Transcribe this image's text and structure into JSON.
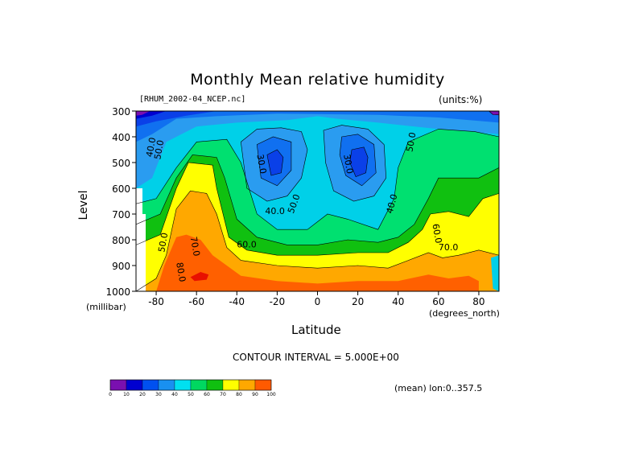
{
  "chart_data": {
    "type": "contour",
    "title": "Monthly Mean relative humidity",
    "source": "[RHUM_2002-04_NCEP.nc]",
    "units": "(units:%)",
    "xlabel": "Latitude",
    "x_unit": "(degrees_north)",
    "ylabel": "Level",
    "y_unit": "(millibar)",
    "xlim": [
      -90,
      90
    ],
    "ylim": [
      1000,
      300
    ],
    "x_ticks": [
      "-80",
      "-60",
      "-40",
      "-20",
      "0",
      "20",
      "40",
      "60",
      "80"
    ],
    "y_ticks": [
      "300",
      "400",
      "500",
      "600",
      "700",
      "800",
      "900",
      "1000"
    ],
    "contour_interval_text": "CONTOUR INTERVAL = 5.000E+00",
    "mean_text": "(mean) lon:0..357.5",
    "contour_labels": [
      "40.0",
      "50.0",
      "30.0",
      "30.0",
      "40.0",
      "50.0",
      "40.0",
      "50.0",
      "60.0",
      "70.0",
      "60.0",
      "70.0",
      "50.0",
      "80.0"
    ],
    "colorbar": {
      "levels": [
        "0",
        "10",
        "20",
        "30",
        "40",
        "50",
        "60",
        "70",
        "80",
        "90",
        "100"
      ],
      "colors": [
        "#7a10b0",
        "#0000d0",
        "#0050f0",
        "#1990f0",
        "#00e0f0",
        "#00d860",
        "#10c010",
        "#ffff00",
        "#ffa800",
        "#ff5a00",
        "#f01000"
      ]
    },
    "band_colors": {
      "bg": "#00d0e8",
      "b20": "#0000d0",
      "b25": "#0a40e8",
      "b30": "#1070f0",
      "b35": "#2a9cf0",
      "b40": "#00d0e8",
      "b50": "#00e070",
      "b60": "#10c010",
      "b70": "#ffff00",
      "b80": "#ffa800",
      "b90": "#ff6000",
      "b95": "#e81000",
      "purple": "#7a10b0"
    }
  }
}
